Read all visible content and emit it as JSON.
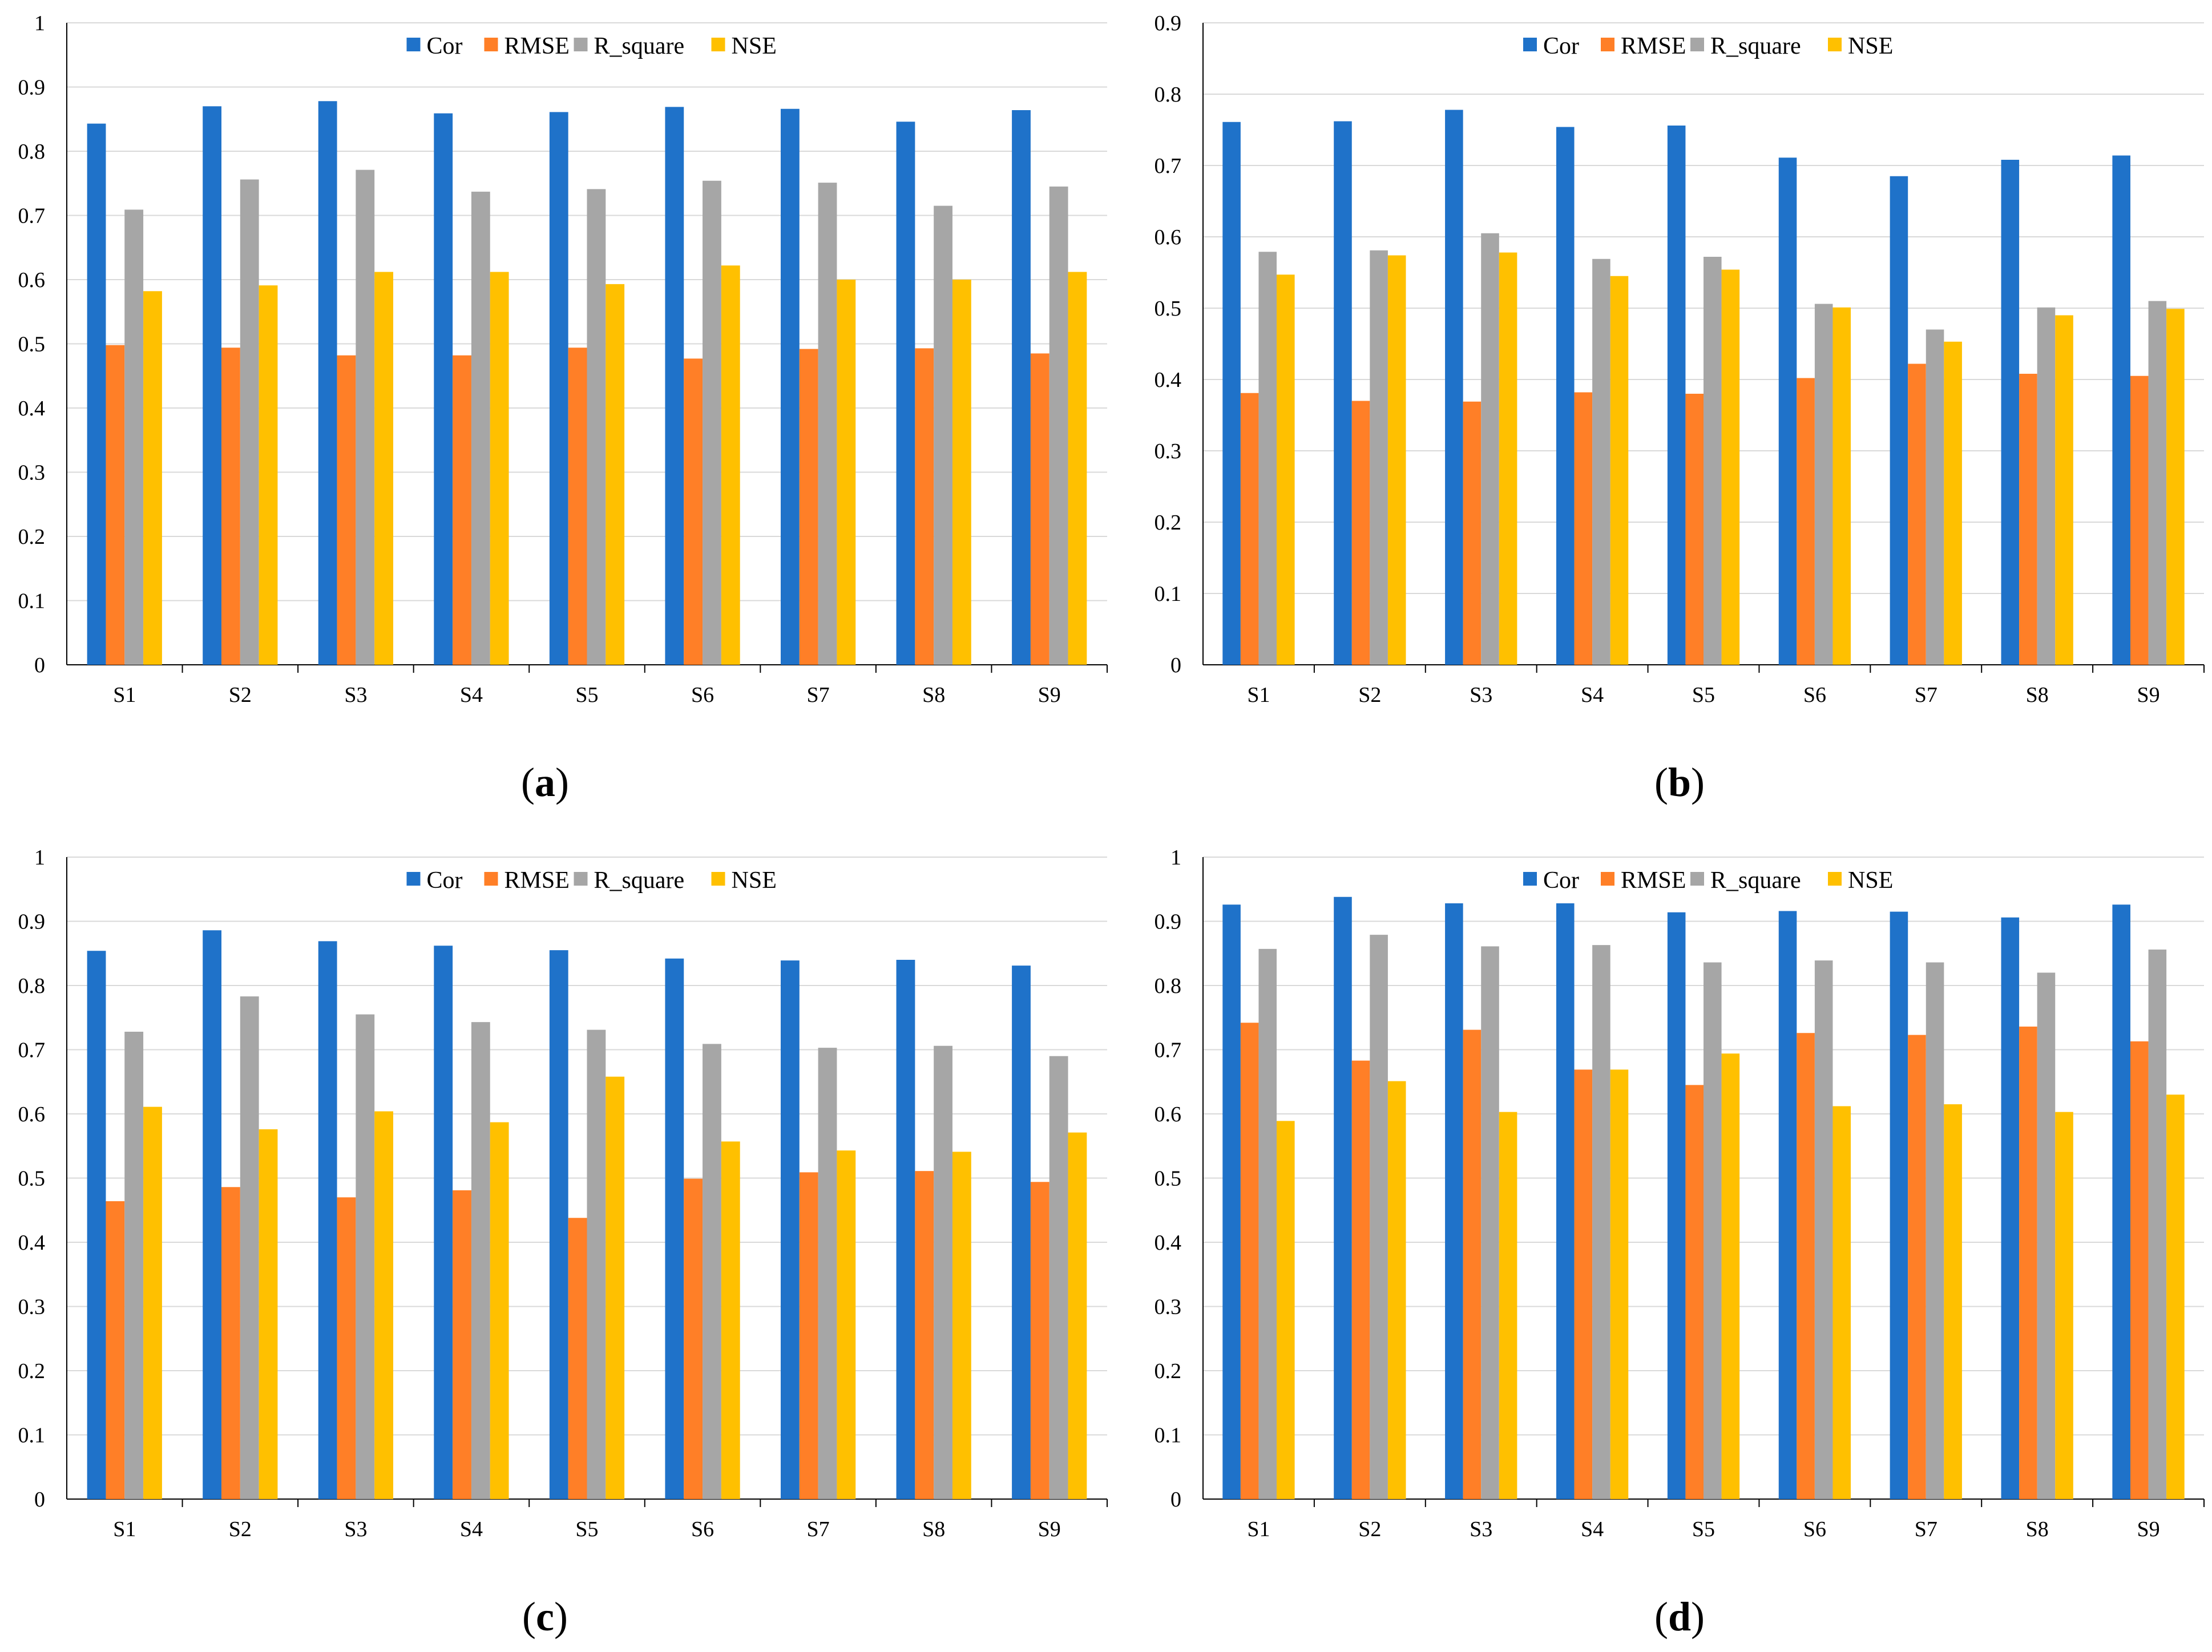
{
  "series_colors": {
    "Cor": "#1F72C9",
    "RMSE": "#FF7F27",
    "R_square": "#A6A6A6",
    "NSE": "#FFC000"
  },
  "chart_data": [
    {
      "type": "bar",
      "panel_label": "a",
      "categories": [
        "S1",
        "S2",
        "S3",
        "S4",
        "S5",
        "S6",
        "S7",
        "S8",
        "S9"
      ],
      "ylim": [
        0,
        1
      ],
      "yticks": [
        "0",
        "0.1",
        "0.2",
        "0.3",
        "0.4",
        "0.5",
        "0.6",
        "0.7",
        "0.8",
        "0.9",
        "1"
      ],
      "legend_position": "top-center",
      "grid": true,
      "series": [
        {
          "name": "Cor",
          "values": [
            0.843,
            0.87,
            0.878,
            0.859,
            0.861,
            0.869,
            0.866,
            0.846,
            0.864
          ]
        },
        {
          "name": "RMSE",
          "values": [
            0.498,
            0.494,
            0.482,
            0.482,
            0.494,
            0.477,
            0.492,
            0.493,
            0.485
          ]
        },
        {
          "name": "R_square",
          "values": [
            0.709,
            0.756,
            0.771,
            0.737,
            0.741,
            0.754,
            0.751,
            0.715,
            0.745
          ]
        },
        {
          "name": "NSE",
          "values": [
            0.582,
            0.591,
            0.612,
            0.612,
            0.593,
            0.622,
            0.6,
            0.6,
            0.612
          ]
        }
      ]
    },
    {
      "type": "bar",
      "panel_label": "b",
      "categories": [
        "S1",
        "S2",
        "S3",
        "S4",
        "S5",
        "S6",
        "S7",
        "S8",
        "S9"
      ],
      "ylim": [
        0,
        0.9
      ],
      "yticks": [
        "0",
        "0.1",
        "0.2",
        "0.3",
        "0.4",
        "0.5",
        "0.6",
        "0.7",
        "0.8",
        "0.9"
      ],
      "legend_position": "top-center",
      "grid": true,
      "series": [
        {
          "name": "Cor",
          "values": [
            0.761,
            0.762,
            0.778,
            0.754,
            0.756,
            0.711,
            0.685,
            0.708,
            0.714
          ]
        },
        {
          "name": "RMSE",
          "values": [
            0.381,
            0.37,
            0.369,
            0.382,
            0.38,
            0.402,
            0.422,
            0.408,
            0.405
          ]
        },
        {
          "name": "R_square",
          "values": [
            0.579,
            0.581,
            0.605,
            0.569,
            0.572,
            0.506,
            0.47,
            0.501,
            0.51
          ]
        },
        {
          "name": "NSE",
          "values": [
            0.547,
            0.574,
            0.578,
            0.545,
            0.554,
            0.501,
            0.453,
            0.49,
            0.499
          ]
        }
      ]
    },
    {
      "type": "bar",
      "panel_label": "c",
      "categories": [
        "S1",
        "S2",
        "S3",
        "S4",
        "S5",
        "S6",
        "S7",
        "S8",
        "S9"
      ],
      "ylim": [
        0,
        1
      ],
      "yticks": [
        "0",
        "0.1",
        "0.2",
        "0.3",
        "0.4",
        "0.5",
        "0.6",
        "0.7",
        "0.8",
        "0.9",
        "1"
      ],
      "legend_position": "top-center",
      "grid": true,
      "series": [
        {
          "name": "Cor",
          "values": [
            0.854,
            0.886,
            0.869,
            0.862,
            0.855,
            0.842,
            0.839,
            0.84,
            0.831
          ]
        },
        {
          "name": "RMSE",
          "values": [
            0.464,
            0.486,
            0.47,
            0.481,
            0.438,
            0.499,
            0.509,
            0.511,
            0.494
          ]
        },
        {
          "name": "R_square",
          "values": [
            0.728,
            0.783,
            0.755,
            0.743,
            0.731,
            0.709,
            0.703,
            0.706,
            0.69
          ]
        },
        {
          "name": "NSE",
          "values": [
            0.611,
            0.576,
            0.604,
            0.587,
            0.658,
            0.557,
            0.543,
            0.541,
            0.571
          ]
        }
      ]
    },
    {
      "type": "bar",
      "panel_label": "d",
      "categories": [
        "S1",
        "S2",
        "S3",
        "S4",
        "S5",
        "S6",
        "S7",
        "S8",
        "S9"
      ],
      "ylim": [
        0,
        1
      ],
      "yticks": [
        "0",
        "0.1",
        "0.2",
        "0.3",
        "0.4",
        "0.5",
        "0.6",
        "0.7",
        "0.8",
        "0.9",
        "1"
      ],
      "legend_position": "top-center",
      "grid": true,
      "series": [
        {
          "name": "Cor",
          "values": [
            0.926,
            0.938,
            0.928,
            0.928,
            0.914,
            0.916,
            0.915,
            0.906,
            0.926
          ]
        },
        {
          "name": "RMSE",
          "values": [
            0.742,
            0.683,
            0.731,
            0.669,
            0.645,
            0.726,
            0.723,
            0.736,
            0.713
          ]
        },
        {
          "name": "R_square",
          "values": [
            0.857,
            0.879,
            0.861,
            0.863,
            0.836,
            0.839,
            0.836,
            0.82,
            0.856
          ]
        },
        {
          "name": "NSE",
          "values": [
            0.589,
            0.651,
            0.603,
            0.669,
            0.694,
            0.612,
            0.615,
            0.603,
            0.63
          ]
        }
      ]
    }
  ]
}
